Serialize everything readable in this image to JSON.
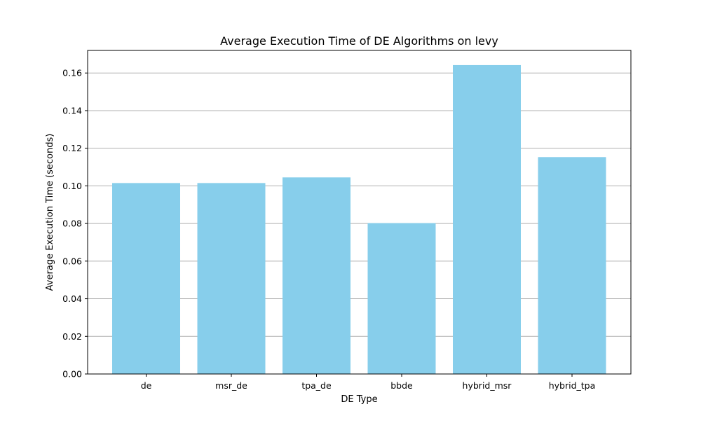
{
  "chart_data": {
    "type": "bar",
    "title": "Average Execution Time of DE Algorithms on levy",
    "xlabel": "DE Type",
    "ylabel": "Average Execution Time (seconds)",
    "categories": [
      "de",
      "msr_de",
      "tpa_de",
      "bbde",
      "hybrid_msr",
      "hybrid_tpa"
    ],
    "values": [
      0.1015,
      0.1015,
      0.1045,
      0.0802,
      0.1642,
      0.1153
    ],
    "ylim": [
      0,
      0.172
    ],
    "yticks": [
      "0.00",
      "0.02",
      "0.04",
      "0.06",
      "0.08",
      "0.10",
      "0.12",
      "0.14",
      "0.16"
    ],
    "grid": "horizontal",
    "legend": "none",
    "colors": {
      "bar": "#87ceeb",
      "grid": "#b0b0b0",
      "axis": "#000000"
    }
  }
}
